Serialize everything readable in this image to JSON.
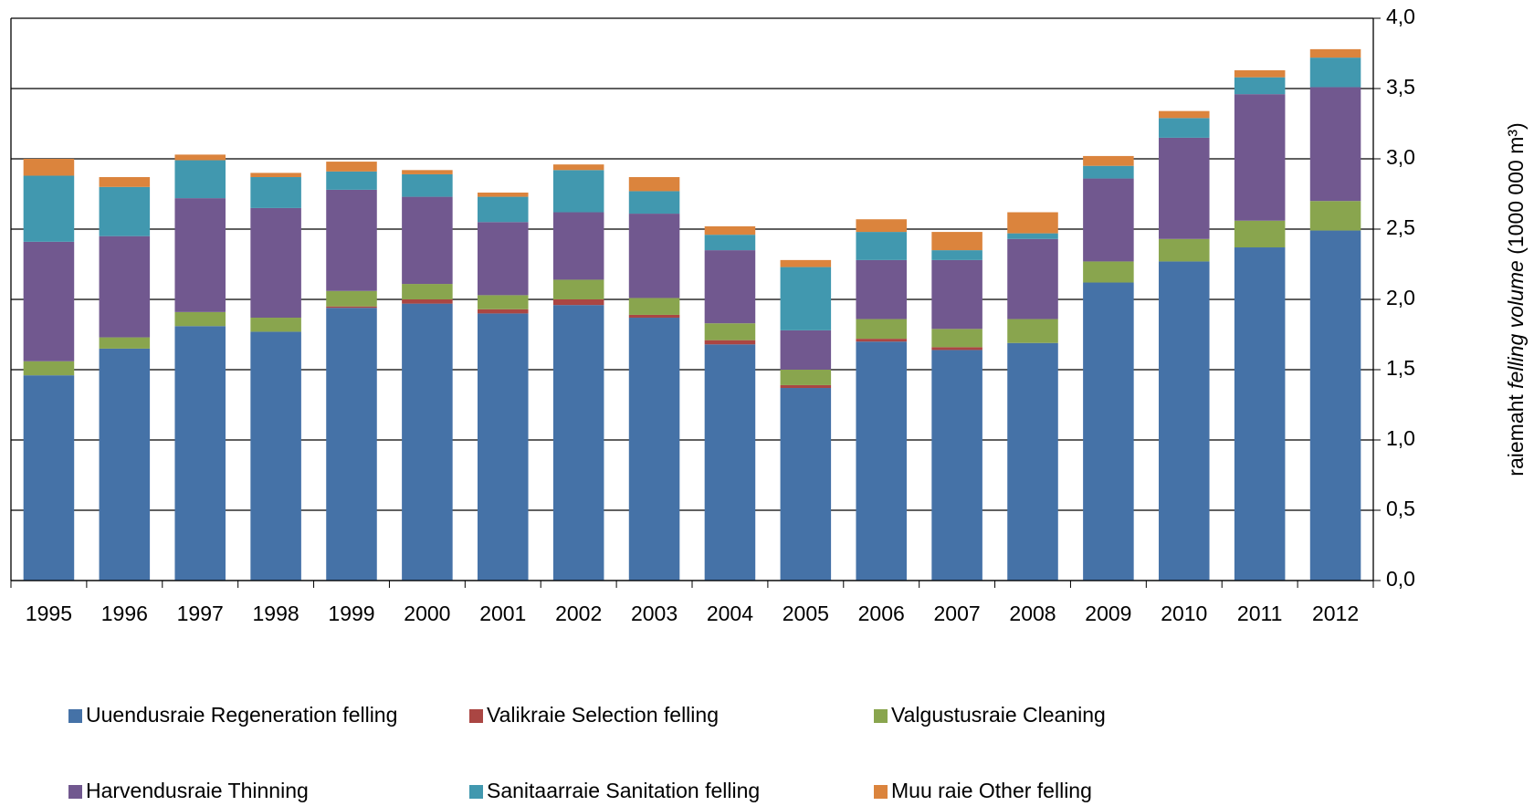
{
  "chart_data": {
    "type": "bar",
    "stacked": true,
    "y_label": [
      "raiemaht",
      "felling volume",
      "(1000 000 m³)"
    ],
    "categories": [
      "1995",
      "1996",
      "1997",
      "1998",
      "1999",
      "2000",
      "2001",
      "2002",
      "2003",
      "2004",
      "2005",
      "2006",
      "2007",
      "2008",
      "2009",
      "2010",
      "2011",
      "2012"
    ],
    "ylim": [
      0,
      4
    ],
    "yticks": [
      {
        "value": 0,
        "label": "0,0"
      },
      {
        "value": 0.5,
        "label": "0,5"
      },
      {
        "value": 1,
        "label": "1,0"
      },
      {
        "value": 1.5,
        "label": "1,5"
      },
      {
        "value": 2,
        "label": "2,0"
      },
      {
        "value": 2.5,
        "label": "2,5"
      },
      {
        "value": 3,
        "label": "3,0"
      },
      {
        "value": 3.5,
        "label": "3,5"
      },
      {
        "value": 4,
        "label": "4,0"
      }
    ],
    "grid": true,
    "y_axis_side": "right",
    "legend": "bottom",
    "series": [
      {
        "name": "Uuendusraie Regeneration felling",
        "color": "#4572a7",
        "values": [
          1.46,
          1.65,
          1.81,
          1.77,
          1.94,
          1.97,
          1.9,
          1.96,
          1.87,
          1.68,
          1.37,
          1.7,
          1.64,
          1.69,
          2.12,
          2.27,
          2.37,
          2.49
        ]
      },
      {
        "name": "Valikraie Selection felling",
        "color": "#aa4643",
        "values": [
          0,
          0,
          0,
          0,
          0.01,
          0.03,
          0.03,
          0.04,
          0.02,
          0.03,
          0.02,
          0.02,
          0.02,
          0,
          0,
          0,
          0,
          0
        ]
      },
      {
        "name": "Valgustusraie Cleaning",
        "color": "#89a54e",
        "values": [
          0.1,
          0.08,
          0.1,
          0.1,
          0.11,
          0.11,
          0.1,
          0.14,
          0.12,
          0.12,
          0.11,
          0.14,
          0.13,
          0.17,
          0.15,
          0.16,
          0.19,
          0.21
        ]
      },
      {
        "name": "Harvendusraie Thinning",
        "color": "#71588f",
        "values": [
          0.85,
          0.72,
          0.81,
          0.78,
          0.72,
          0.62,
          0.52,
          0.48,
          0.6,
          0.52,
          0.28,
          0.42,
          0.49,
          0.57,
          0.59,
          0.72,
          0.9,
          0.81
        ]
      },
      {
        "name": "Sanitaarraie Sanitation felling",
        "color": "#4198af",
        "values": [
          0.47,
          0.35,
          0.27,
          0.22,
          0.13,
          0.16,
          0.18,
          0.3,
          0.16,
          0.11,
          0.45,
          0.2,
          0.07,
          0.04,
          0.09,
          0.14,
          0.12,
          0.21
        ]
      },
      {
        "name": "Muu raie Other felling",
        "color": "#db843d",
        "values": [
          0.12,
          0.07,
          0.04,
          0.03,
          0.07,
          0.03,
          0.03,
          0.04,
          0.1,
          0.06,
          0.05,
          0.09,
          0.13,
          0.15,
          0.07,
          0.05,
          0.05,
          0.06
        ]
      }
    ]
  }
}
